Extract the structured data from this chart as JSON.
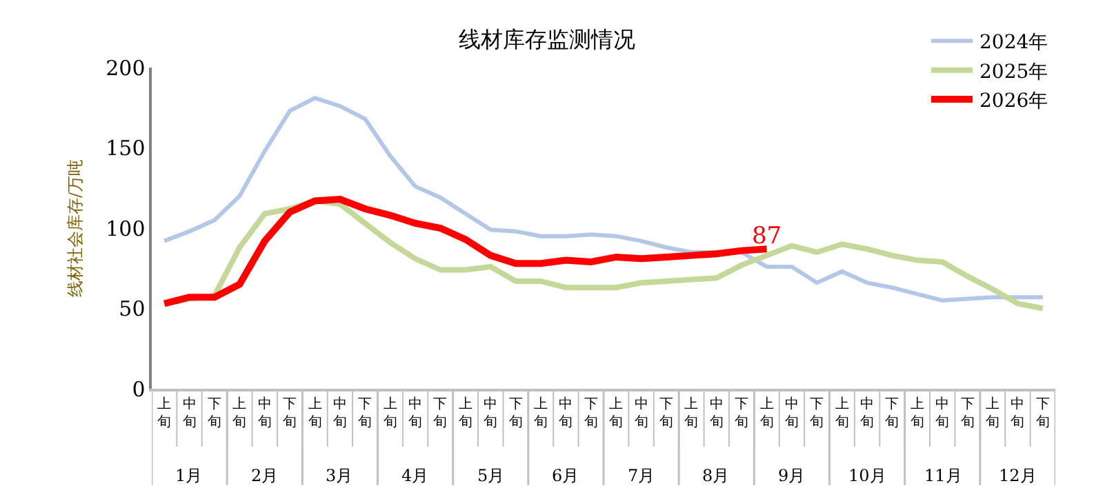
{
  "chart_data": {
    "type": "line",
    "title": "线材库存监测情况",
    "ylabel": "线材社会库存/万吨",
    "categories": [
      "上旬",
      "中旬",
      "下旬",
      "上旬",
      "中旬",
      "下旬",
      "上旬",
      "中旬",
      "下旬",
      "上旬",
      "中旬",
      "下旬",
      "上旬",
      "中旬",
      "下旬",
      "上旬",
      "中旬",
      "下旬",
      "上旬",
      "中旬",
      "下旬",
      "上旬",
      "中旬",
      "下旬",
      "上旬",
      "中旬",
      "下旬",
      "上旬",
      "中旬",
      "下旬",
      "上旬",
      "中旬",
      "下旬",
      "上旬",
      "中旬",
      "下旬"
    ],
    "annotations": [
      "1月",
      "2月",
      "3月",
      "4月",
      "5月",
      "6月",
      "7月",
      "8月",
      "9月",
      "10月",
      "11月",
      "12月"
    ],
    "series": [
      {
        "name": "2024年",
        "color": "#b4c7e7",
        "values": [
          92,
          98,
          105,
          120,
          148,
          173,
          181,
          176,
          168,
          145,
          126,
          119,
          109,
          99,
          98,
          95,
          95,
          96,
          95,
          92,
          88,
          85,
          85,
          85,
          76,
          76,
          66,
          73,
          66,
          63,
          59,
          55,
          56,
          57,
          57,
          57
        ]
      },
      {
        "name": "2025年",
        "color": "#c5d89a",
        "values": [
          53,
          56,
          58,
          88,
          109,
          112,
          117,
          115,
          103,
          91,
          81,
          74,
          74,
          76,
          67,
          67,
          63,
          63,
          63,
          66,
          67,
          68,
          69,
          77,
          83,
          89,
          85,
          90,
          87,
          83,
          80,
          79,
          70,
          62,
          53,
          50
        ]
      },
      {
        "name": "2026年",
        "color": "#ff0000",
        "values": [
          53,
          57,
          57,
          65,
          92,
          110,
          117,
          118,
          112,
          108,
          103,
          100,
          93,
          83,
          78,
          78,
          80,
          79,
          82,
          81,
          82,
          83,
          84,
          86,
          87,
          null,
          null,
          null,
          null,
          null,
          null,
          null,
          null,
          null,
          null,
          null
        ],
        "value_labels": [
          null,
          null,
          null,
          null,
          null,
          null,
          null,
          null,
          null,
          null,
          null,
          null,
          null,
          null,
          null,
          null,
          null,
          null,
          null,
          null,
          null,
          null,
          null,
          null,
          "87",
          null,
          null,
          null,
          null,
          null,
          null,
          null,
          null,
          null,
          null,
          null
        ]
      }
    ],
    "ylim": [
      0,
      200
    ],
    "yticks": [
      0,
      50,
      100,
      150,
      200
    ],
    "legend": "top right",
    "marker": "none",
    "line_style": "solid"
  }
}
